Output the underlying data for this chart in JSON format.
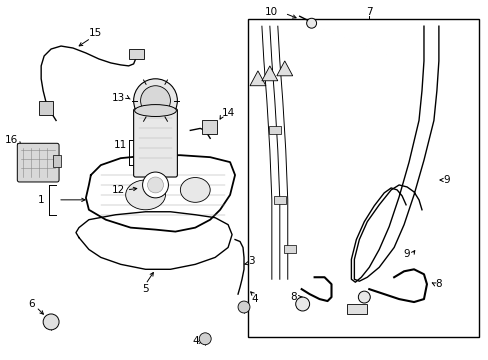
{
  "bg_color": "#ffffff",
  "lc": "#000000",
  "figsize": [
    4.89,
    3.6
  ],
  "dpi": 100
}
